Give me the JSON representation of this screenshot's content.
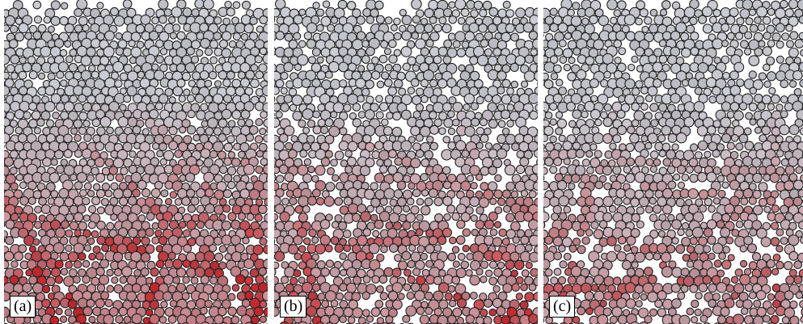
{
  "figure": {
    "panels": [
      {
        "id": "a",
        "label": "(a)",
        "force_chain_intensity": 1.0,
        "void_fraction": 0.02
      },
      {
        "id": "b",
        "label": "(b)",
        "force_chain_intensity": 0.8,
        "void_fraction": 0.1
      },
      {
        "id": "c",
        "label": "(c)",
        "force_chain_intensity": 0.65,
        "void_fraction": 0.13
      }
    ],
    "colors": {
      "particle_gray": "#c3c3cb",
      "particle_red": "#c0282d",
      "outline": "#202020",
      "background": "#ffffff"
    }
  }
}
